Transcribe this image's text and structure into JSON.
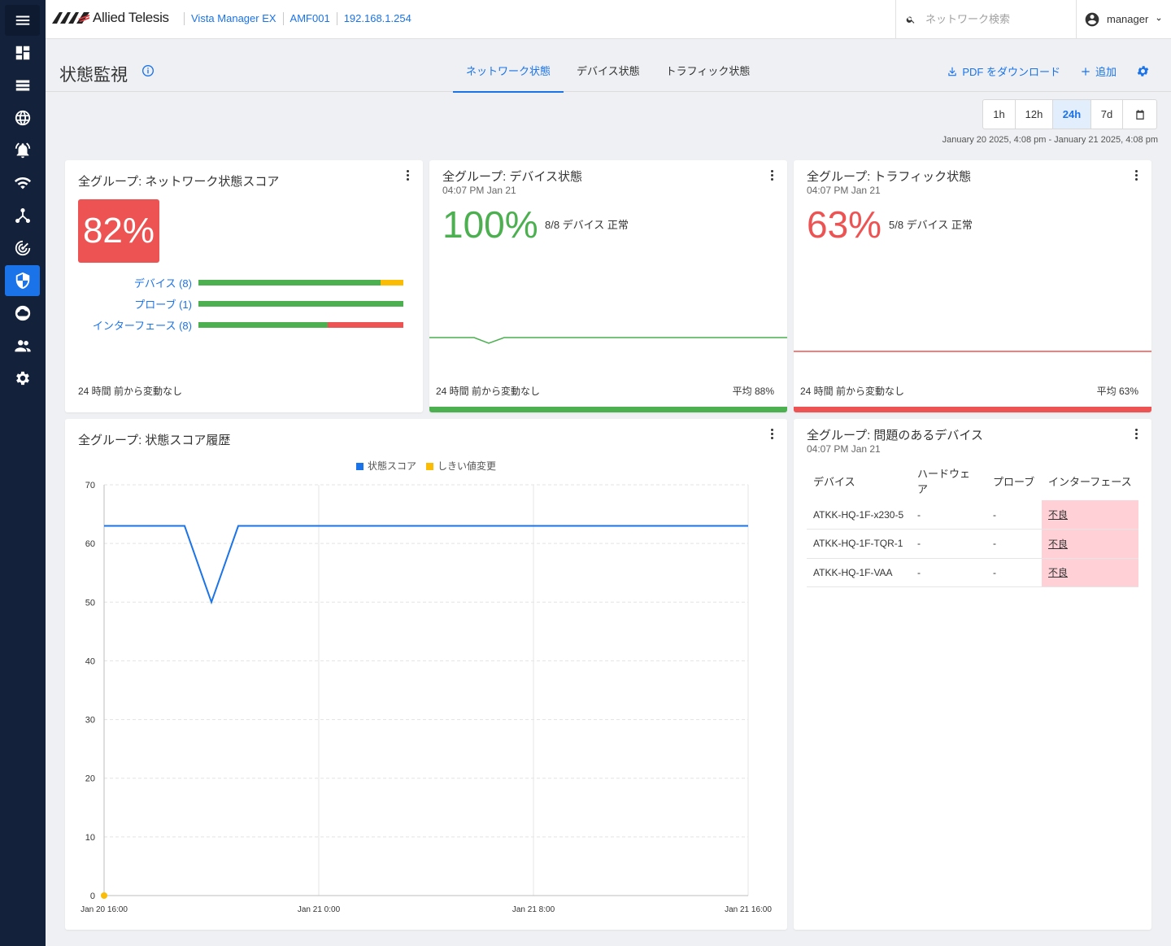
{
  "brand": {
    "name": "Allied Telesis"
  },
  "breadcrumb": [
    "Vista Manager EX",
    "AMF001",
    "192.168.1.254"
  ],
  "search": {
    "placeholder": "ネットワーク検索"
  },
  "user": {
    "name": "manager"
  },
  "sidebar": {
    "items": [
      {
        "icon": "menu-icon"
      },
      {
        "icon": "dashboard-icon"
      },
      {
        "icon": "list-icon"
      },
      {
        "icon": "globe-icon"
      },
      {
        "icon": "alarm-icon"
      },
      {
        "icon": "wifi-icon"
      },
      {
        "icon": "topology-icon"
      },
      {
        "icon": "radar-icon"
      },
      {
        "icon": "shield-icon",
        "active": true
      },
      {
        "icon": "cloud-icon"
      },
      {
        "icon": "users-icon"
      },
      {
        "icon": "gear-icon"
      }
    ]
  },
  "page": {
    "title": "状態監視",
    "tabs": [
      {
        "label": "ネットワーク状態",
        "active": true
      },
      {
        "label": "デバイス状態"
      },
      {
        "label": "トラフィック状態"
      }
    ],
    "actions": {
      "pdf": "PDF をダウンロード",
      "add": "追加"
    }
  },
  "time_range": {
    "options": [
      "1h",
      "12h",
      "24h",
      "7d"
    ],
    "selected": "24h",
    "range_text": "January 20 2025, 4:08 pm - January 21 2025, 4:08 pm"
  },
  "colors": {
    "accent": "#1a73e8",
    "good": "#4caf50",
    "bad": "#ed5352",
    "warn": "#fbbc05"
  },
  "cards": {
    "network_score": {
      "title": "全グループ: ネットワーク状態スコア",
      "score": "82%",
      "breakdown": [
        {
          "label": "デバイス (8)",
          "good": 0.89,
          "warn": 0.11,
          "bad": 0
        },
        {
          "label": "プローブ (1)",
          "good": 1.0,
          "warn": 0,
          "bad": 0
        },
        {
          "label": "インターフェース (8)",
          "good": 0.63,
          "warn": 0,
          "bad": 0.37
        }
      ],
      "footer": "24 時間 前から変動なし"
    },
    "device_status": {
      "title": "全グループ: デバイス状態",
      "time": "04:07 PM Jan 21",
      "percent": "100%",
      "note": "8/8 デバイス 正常",
      "footer": "24 時間 前から変動なし",
      "avg": "平均 88%"
    },
    "traffic_status": {
      "title": "全グループ: トラフィック状態",
      "time": "04:07 PM Jan 21",
      "percent": "63%",
      "note": "5/8 デバイス 正常",
      "footer": "24 時間 前から変動なし",
      "avg": "平均 63%"
    },
    "history": {
      "title": "全グループ: 状態スコア履歴"
    },
    "problem_devices": {
      "title": "全グループ: 問題のあるデバイス",
      "time": "04:07 PM Jan 21",
      "columns": [
        "デバイス",
        "ハードウェア",
        "プローブ",
        "インターフェース"
      ],
      "rows": [
        {
          "device": "ATKK-HQ-1F-x230-5",
          "hardware": "-",
          "probe": "-",
          "interface": "不良"
        },
        {
          "device": "ATKK-HQ-1F-TQR-1",
          "hardware": "-",
          "probe": "-",
          "interface": "不良"
        },
        {
          "device": "ATKK-HQ-1F-VAA",
          "hardware": "-",
          "probe": "-",
          "interface": "不良"
        }
      ]
    }
  },
  "chart_data": {
    "type": "line",
    "title": "全グループ: 状態スコア履歴",
    "x_ticks": [
      "Jan 20 16:00",
      "Jan 21 0:00",
      "Jan 21 8:00",
      "Jan 21 16:00"
    ],
    "y_ticks": [
      0,
      10,
      20,
      30,
      40,
      50,
      60,
      70
    ],
    "ylim": [
      0,
      70
    ],
    "grid": true,
    "legend": "top-center",
    "series": [
      {
        "name": "状態スコア",
        "color": "#1a73e8",
        "points": [
          [
            0,
            63
          ],
          [
            3,
            63
          ],
          [
            4,
            50
          ],
          [
            5,
            63
          ],
          [
            24,
            63
          ]
        ]
      },
      {
        "name": "しきい値変更",
        "color": "#fbbc05",
        "points": [
          [
            0,
            0
          ]
        ]
      }
    ],
    "x_unit_hours_span": 24
  }
}
